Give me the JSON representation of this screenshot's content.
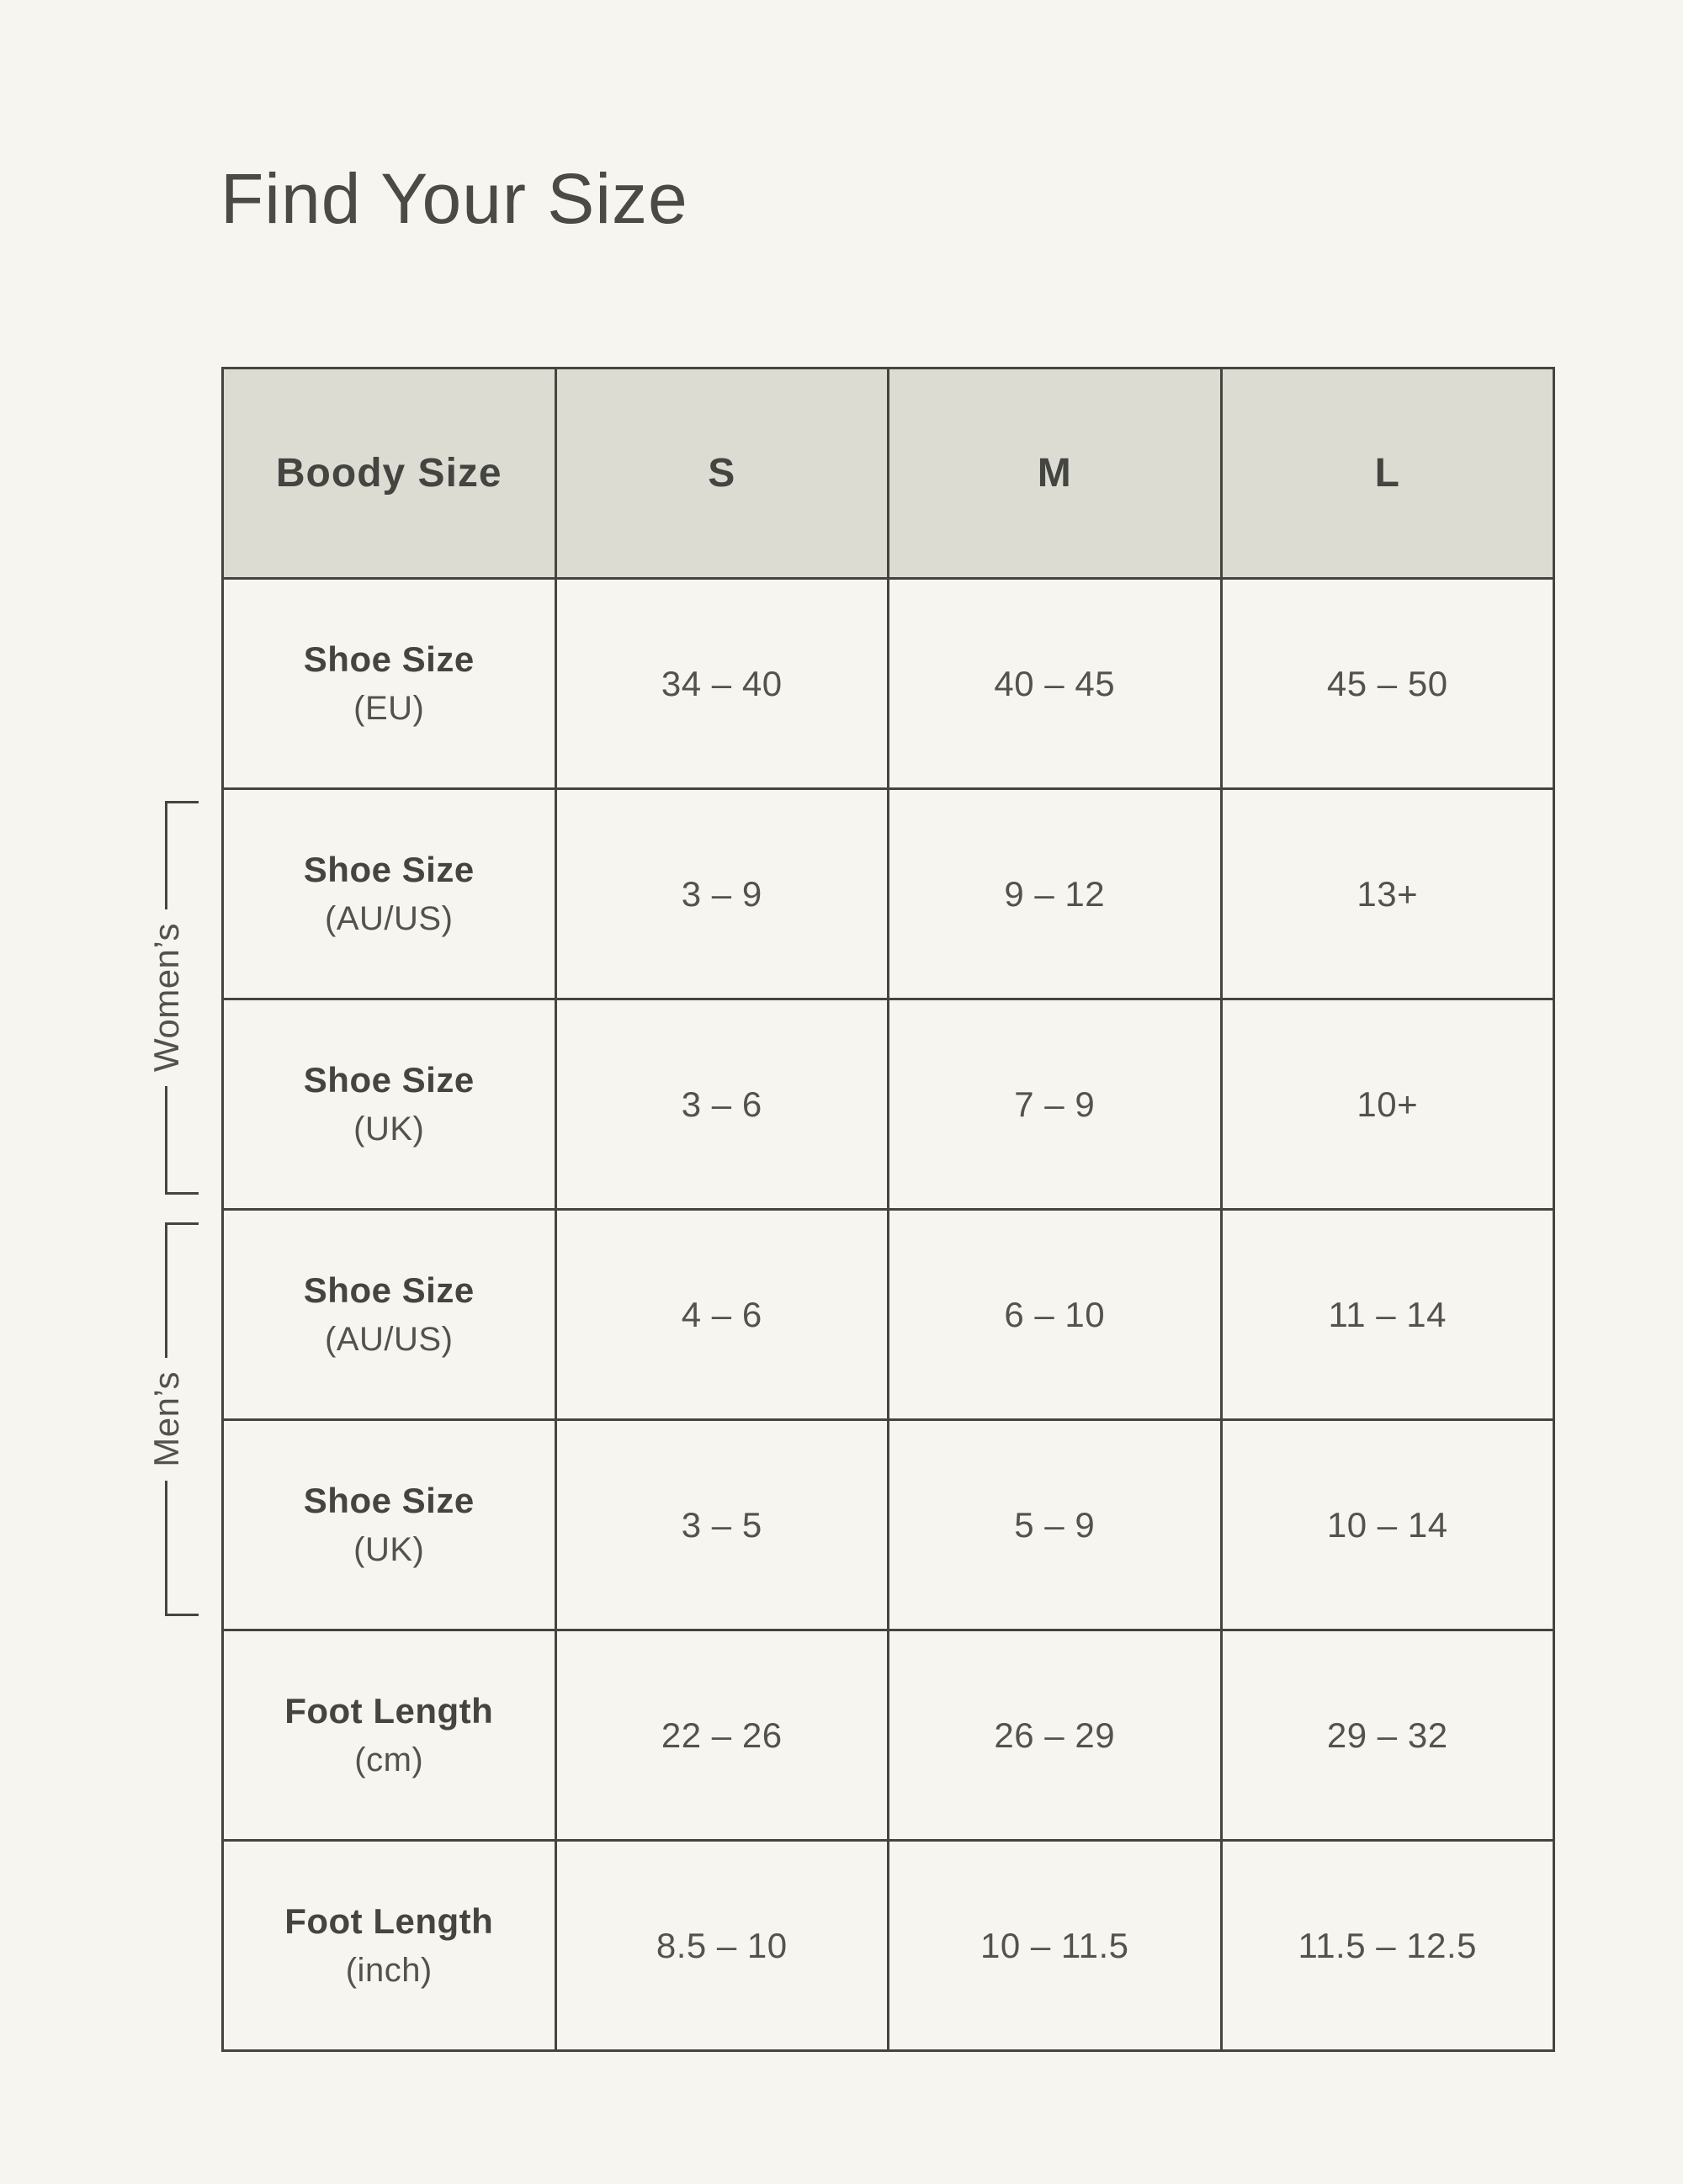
{
  "page": {
    "title": "Find Your Size"
  },
  "colors": {
    "page_bg": "#f6f5ef",
    "header_bg": "#dcdcd3",
    "border": "#45443e",
    "text": "#4b4a45"
  },
  "table": {
    "header": {
      "col0": "Boody Size",
      "col1": "S",
      "col2": "M",
      "col3": "L"
    },
    "rows": [
      {
        "label": "Shoe Size",
        "sublabel": "(EU)",
        "s": "34 – 40",
        "m": "40 – 45",
        "l": "45 – 50"
      },
      {
        "label": "Shoe Size",
        "sublabel": "(AU/US)",
        "s": "3 – 9",
        "m": "9 – 12",
        "l": "13+"
      },
      {
        "label": "Shoe Size",
        "sublabel": "(UK)",
        "s": "3 – 6",
        "m": "7 – 9",
        "l": "10+"
      },
      {
        "label": "Shoe Size",
        "sublabel": "(AU/US)",
        "s": "4 – 6",
        "m": "6 – 10",
        "l": "11 – 14"
      },
      {
        "label": "Shoe Size",
        "sublabel": "(UK)",
        "s": "3 – 5",
        "m": "5 – 9",
        "l": "10 – 14"
      },
      {
        "label": "Foot Length",
        "sublabel": "(cm)",
        "s": "22 – 26",
        "m": "26 – 29",
        "l": "29 – 32"
      },
      {
        "label": "Foot Length",
        "sublabel": "(inch)",
        "s": "8.5 – 10",
        "m": "10 – 11.5",
        "l": "11.5 – 12.5"
      }
    ],
    "groups": [
      {
        "label": "Women’s"
      },
      {
        "label": "Men’s"
      }
    ]
  },
  "chart_data": {
    "type": "table",
    "title": "Find Your Size",
    "columns": [
      "Boody Size",
      "S",
      "M",
      "L"
    ],
    "rows": [
      [
        "Shoe Size (EU)",
        "34 – 40",
        "40 – 45",
        "45 – 50"
      ],
      [
        "Shoe Size (AU/US)",
        "3 – 9",
        "9 – 12",
        "13+"
      ],
      [
        "Shoe Size (UK)",
        "3 – 6",
        "7 – 9",
        "10+"
      ],
      [
        "Shoe Size (AU/US)",
        "4 – 6",
        "6 – 10",
        "11 – 14"
      ],
      [
        "Shoe Size (UK)",
        "3 – 5",
        "5 – 9",
        "10 – 14"
      ],
      [
        "Foot Length (cm)",
        "22 – 26",
        "26 – 29",
        "29 – 32"
      ],
      [
        "Foot Length (inch)",
        "8.5 – 10",
        "10 – 11.5",
        "11.5 – 12.5"
      ]
    ],
    "row_groups": [
      {
        "label": "Women’s",
        "row_indexes": [
          1,
          2
        ]
      },
      {
        "label": "Men’s",
        "row_indexes": [
          3,
          4
        ]
      }
    ],
    "header_fill": "#dcdcd3",
    "grid": true
  }
}
